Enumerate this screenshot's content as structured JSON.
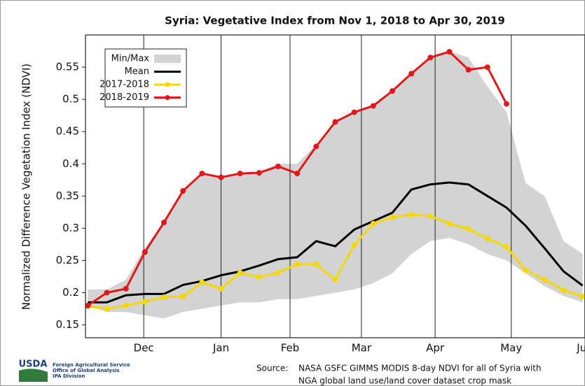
{
  "chart_data": {
    "type": "line",
    "title": "Syria: Vegetative Index from Nov 1, 2018 to Apr 30, 2019",
    "ylabel": "Normalized Difference Vegetation Index (NDVI)",
    "x": [
      0,
      8,
      16,
      24,
      32,
      40,
      48,
      56,
      64,
      72,
      80,
      88,
      96,
      104,
      112,
      120,
      128,
      136,
      144,
      152,
      160,
      168,
      176,
      184,
      192,
      200,
      208
    ],
    "xlim": [
      -1,
      209
    ],
    "xticks": [
      {
        "value": 23.5,
        "label": "Dec"
      },
      {
        "value": 56,
        "label": "Jan"
      },
      {
        "value": 85,
        "label": "Feb"
      },
      {
        "value": 115,
        "label": "Mar"
      },
      {
        "value": 146,
        "label": "Apr"
      },
      {
        "value": 178,
        "label": "May"
      },
      {
        "value": 209,
        "label": "Jun"
      }
    ],
    "ylim": [
      0.13,
      0.6
    ],
    "yticks": [
      0.15,
      0.2,
      0.25,
      0.3,
      0.35,
      0.4,
      0.45,
      0.5,
      0.55
    ],
    "grid": "x",
    "legend": "upper left",
    "band": {
      "name": "Min/Max",
      "color": "#d3d3d3",
      "max": [
        0.205,
        0.205,
        0.22,
        0.27,
        0.31,
        0.36,
        0.385,
        0.38,
        0.385,
        0.388,
        0.4,
        0.4,
        0.43,
        0.465,
        0.48,
        0.49,
        0.51,
        0.54,
        0.565,
        0.575,
        0.565,
        0.52,
        0.48,
        0.37,
        0.35,
        0.28,
        0.26
      ],
      "min": [
        0.18,
        0.17,
        0.17,
        0.165,
        0.16,
        0.17,
        0.175,
        0.18,
        0.185,
        0.185,
        0.19,
        0.19,
        0.195,
        0.2,
        0.205,
        0.215,
        0.23,
        0.26,
        0.28,
        0.285,
        0.275,
        0.26,
        0.25,
        0.23,
        0.21,
        0.195,
        0.185
      ]
    },
    "series": [
      {
        "name": "Mean",
        "color": "#000000",
        "markers": false,
        "values": [
          0.185,
          0.185,
          0.196,
          0.198,
          0.198,
          0.212,
          0.218,
          0.227,
          0.233,
          0.242,
          0.252,
          0.255,
          0.28,
          0.272,
          0.298,
          0.311,
          0.324,
          0.36,
          0.368,
          0.371,
          0.368,
          0.35,
          0.332,
          0.304,
          0.269,
          0.233,
          0.211
        ]
      },
      {
        "name": "2017-2018",
        "color": "#f5d800",
        "markers": true,
        "values": [
          0.179,
          0.175,
          0.18,
          0.186,
          0.193,
          0.194,
          0.216,
          0.206,
          0.231,
          0.224,
          0.231,
          0.244,
          0.244,
          0.22,
          0.274,
          0.307,
          0.317,
          0.321,
          0.319,
          0.307,
          0.299,
          0.284,
          0.271,
          0.235,
          0.22,
          0.204,
          0.194
        ]
      },
      {
        "name": "2018-2019",
        "color": "#e3171b",
        "markers": true,
        "values": [
          0.18,
          0.2,
          0.206,
          0.263,
          0.309,
          0.358,
          0.385,
          0.379,
          0.385,
          0.386,
          0.396,
          0.385,
          0.427,
          0.465,
          0.48,
          0.49,
          0.513,
          0.54,
          0.565,
          0.574,
          0.546,
          0.55,
          0.493,
          null,
          null,
          null,
          null
        ]
      }
    ]
  },
  "footer": {
    "logo": "USDA",
    "agency": [
      "Foreign Agricultural Service",
      "Office of Global Analysis",
      "IPA Division"
    ],
    "source_label": "Source:",
    "source": [
      "NASA GSFC GIMMS MODIS 8-day NDVI for all of Syria with",
      "NGA global land use/land cover dataset crop mask"
    ]
  }
}
